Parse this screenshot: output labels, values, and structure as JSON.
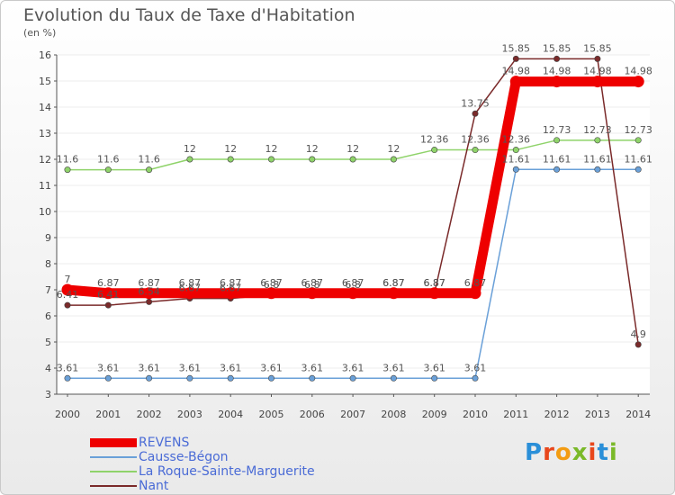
{
  "header": {
    "title": "Evolution du Taux de Taxe d'Habitation",
    "unit": "(en %)"
  },
  "logo": {
    "text": "Proxiti",
    "colors": [
      "#2a8fd8",
      "#e8471c",
      "#f39c12",
      "#7ab929",
      "#e8471c",
      "#2a8fd8",
      "#7ab929"
    ]
  },
  "chart_data": {
    "type": "line",
    "title": "Evolution du Taux de Taxe d'Habitation",
    "ylabel": "(en %)",
    "xlabel": "",
    "ylim": [
      3,
      16
    ],
    "yticks": [
      "3",
      "4",
      "5",
      "6",
      "7",
      "8",
      "9",
      "10",
      "11",
      "12",
      "13",
      "14",
      "15",
      "16"
    ],
    "categories": [
      "2000",
      "2001",
      "2002",
      "2003",
      "2004",
      "2005",
      "2006",
      "2007",
      "2008",
      "2009",
      "2010",
      "2011",
      "2012",
      "2013",
      "2014"
    ],
    "series": [
      {
        "name": "REVENS",
        "color": "#ee0000",
        "values": [
          7,
          6.87,
          6.87,
          6.87,
          6.87,
          6.87,
          6.87,
          6.87,
          6.87,
          6.87,
          6.87,
          14.98,
          14.98,
          14.98,
          14.98
        ],
        "labels": [
          "7",
          "6.87",
          "6.87",
          "6.87",
          "6.87",
          "6.87",
          "6.87",
          "6.87",
          "6.87",
          "6.87",
          "6.87",
          "14.98",
          "14.98",
          "14.98",
          "14.98"
        ]
      },
      {
        "name": "Causse-Bégon",
        "color": "#6aa0d8",
        "values": [
          3.61,
          3.61,
          3.61,
          3.61,
          3.61,
          3.61,
          3.61,
          3.61,
          3.61,
          3.61,
          3.61,
          11.61,
          11.61,
          11.61,
          11.61
        ],
        "labels": [
          "3.61",
          "3.61",
          "3.61",
          "3.61",
          "3.61",
          "3.61",
          "3.61",
          "3.61",
          "3.61",
          "3.61",
          "3.61",
          "11.61",
          "11.61",
          "11.61",
          "11.61"
        ]
      },
      {
        "name": "La Roque-Sainte-Marguerite",
        "color": "#8fd36a",
        "values": [
          11.6,
          11.6,
          11.6,
          12,
          12,
          12,
          12,
          12,
          12,
          12.36,
          12.36,
          12.36,
          12.73,
          12.73,
          12.73
        ],
        "labels": [
          "11.6",
          "11.6",
          "11.6",
          "12",
          "12",
          "12",
          "12",
          "12",
          "12",
          "12.36",
          "12.36",
          "12.36",
          "12.73",
          "12.73",
          "12.73"
        ]
      },
      {
        "name": "Nant",
        "color": "#7a2a2a",
        "values": [
          6.41,
          6.41,
          6.54,
          6.67,
          6.67,
          6.8,
          6.8,
          6.8,
          6.87,
          6.87,
          13.75,
          15.85,
          15.85,
          15.85,
          4.9
        ],
        "labels": [
          "6.41",
          "6.41",
          "6.54",
          "6.67",
          "6.67",
          "6.8",
          "6.8",
          "6.8",
          "6.87",
          "6.87",
          "13.75",
          "15.85",
          "15.85",
          "15.85",
          "4.9"
        ]
      }
    ],
    "legend": "bottom-left"
  }
}
